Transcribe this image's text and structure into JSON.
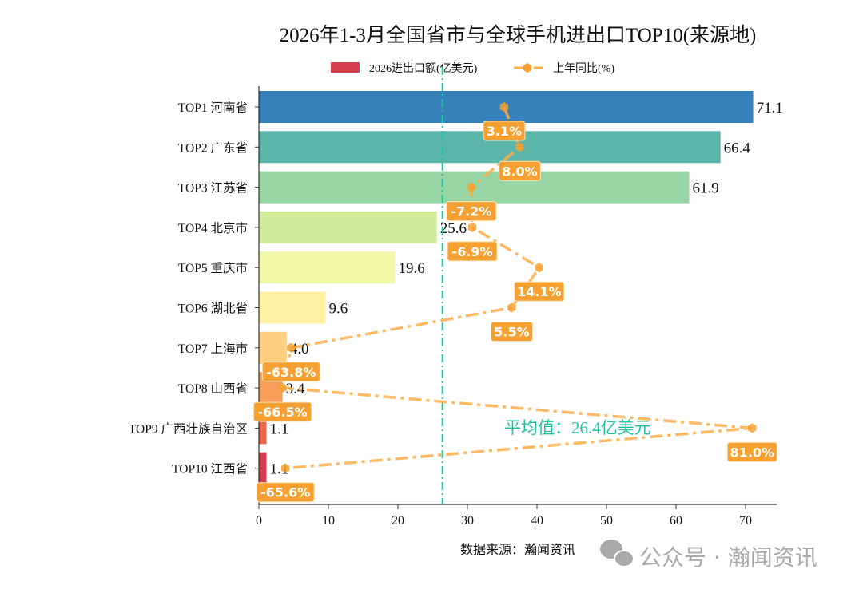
{
  "chart_data": {
    "type": "bar",
    "orientation": "horizontal",
    "title": "2026年1-3月全国省市与全球手机进出口TOP10(来源地)",
    "categories": [
      "TOP1 河南省",
      "TOP2 广东省",
      "TOP3 江苏省",
      "TOP4 北京市",
      "TOP5 重庆市",
      "TOP6 湖北省",
      "TOP7 上海市",
      "TOP8 山西省",
      "TOP9 广西壮族自治区",
      "TOP10 江西省"
    ],
    "series": [
      {
        "name": "2026进出口额(亿美元)",
        "type": "bar",
        "values": [
          71.1,
          66.4,
          61.9,
          25.6,
          19.6,
          9.6,
          4.0,
          3.4,
          1.1,
          1.1
        ],
        "colors": [
          "#3681ba",
          "#5bb5a8",
          "#98d5a4",
          "#d1ed9c",
          "#f0f9a8",
          "#fef1a4",
          "#fdcf7e",
          "#f99d5a",
          "#ef6647",
          "#d53e4f"
        ]
      },
      {
        "name": "上年同比(%)",
        "type": "line",
        "values": [
          3.1,
          8.0,
          -7.2,
          -6.9,
          14.1,
          5.5,
          -63.8,
          -66.5,
          81.0,
          -65.6
        ],
        "color": "#fdae4b",
        "label_color": "#f5a030"
      }
    ],
    "xlim": [
      0,
      74.5
    ],
    "xticks": [
      0,
      10,
      20,
      30,
      40,
      50,
      60,
      70
    ],
    "mean_line": {
      "value": 26.4,
      "label": "平均值：26.4亿美元",
      "color": "#22c3a0"
    },
    "legend": "top-center",
    "grid": false
  },
  "footer": {
    "source": "数据来源：瀚闻资讯",
    "watermark": "公众号 · 瀚闻资讯"
  }
}
